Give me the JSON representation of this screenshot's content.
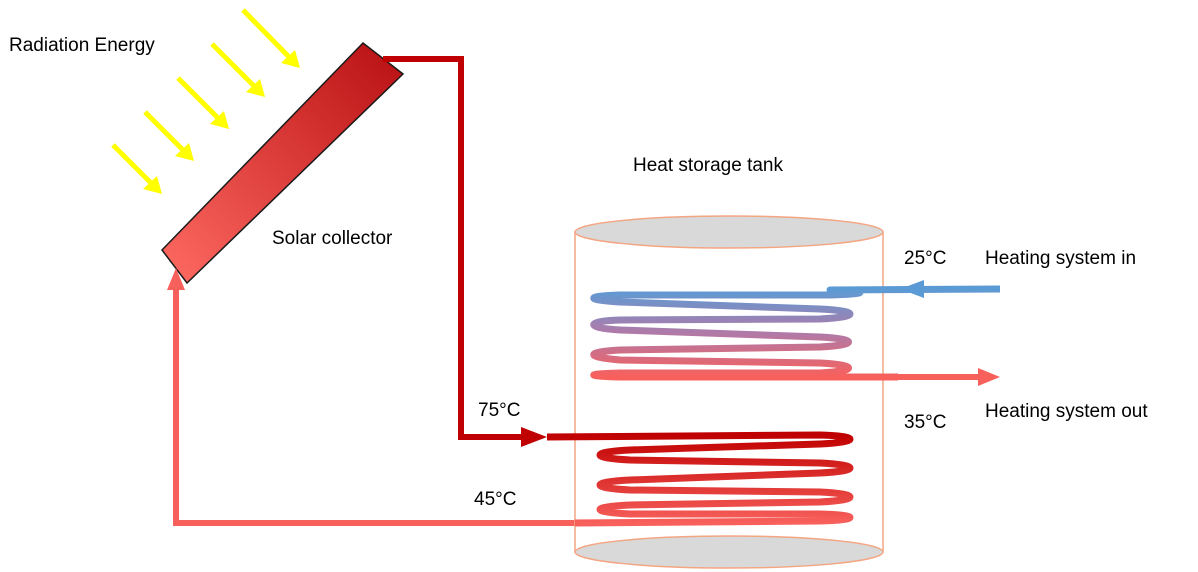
{
  "labels": {
    "radiation": "Radiation Energy",
    "collector": "Solar collector",
    "tank": "Heat storage tank",
    "temp_hot_in": "75°C",
    "temp_return": "45°C",
    "temp_heating_in": "25°C",
    "temp_heating_out": "35°C",
    "heating_in": "Heating system in",
    "heating_out": "Heating system out"
  },
  "colors": {
    "sun_rays": "#ffff00",
    "hot_pipe": "#c00000",
    "warm_pipe": "#f8605c",
    "cold_pipe": "#5b9bd5",
    "tank_outline": "#f4a582",
    "tank_cap": "#d9d9d9"
  }
}
